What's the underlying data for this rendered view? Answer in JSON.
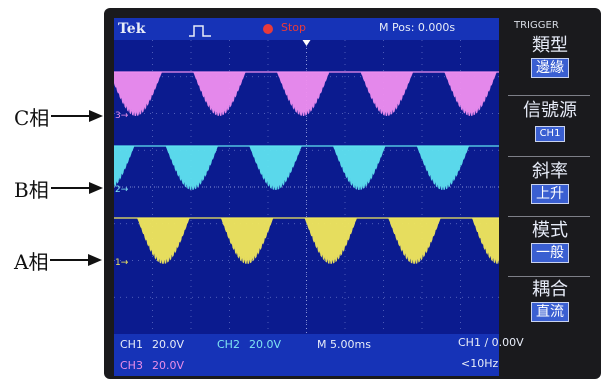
{
  "annotations": [
    {
      "label": "C相"
    },
    {
      "label": "B相"
    },
    {
      "label": "A相"
    }
  ],
  "scope": {
    "brand": "Tek",
    "status": "Stop",
    "m_pos": "M Pos: 0.000s",
    "bottom": {
      "ch1_label": "CH1",
      "ch1_value": "20.0V",
      "ch2_label": "CH2",
      "ch2_value": "20.0V",
      "ch3_label": "CH3",
      "ch3_value": "20.0V",
      "timebase": "M 5.00ms",
      "trigger": "CH1 ∕ 0.00V",
      "freq": "<10Hz"
    },
    "channel_markers": [
      "3→",
      "2→",
      "1→"
    ],
    "colors": {
      "ch1": "#f2e85c",
      "ch2": "#5fe3f0",
      "ch3": "#f08ef0",
      "screen": "#0b1b8f"
    }
  },
  "menu": {
    "title": "TRIGGER",
    "items": [
      {
        "label": "類型",
        "value": "邊緣"
      },
      {
        "label": "信號源",
        "value": "CH1"
      },
      {
        "label": "斜率",
        "value": "上升"
      },
      {
        "label": "模式",
        "value": "一般"
      },
      {
        "label": "耦合",
        "value": "直流"
      }
    ]
  }
}
